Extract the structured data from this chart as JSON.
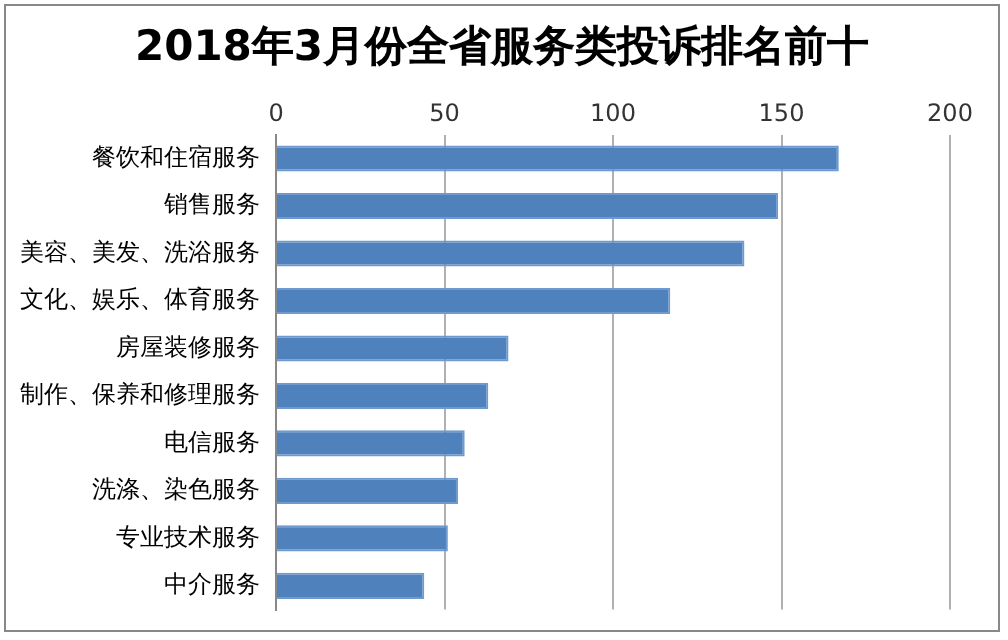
{
  "chart_data": {
    "type": "bar",
    "orientation": "horizontal",
    "title": "2018年3月份全省服务类投诉排名前十",
    "categories": [
      "餐饮和住宿服务",
      "销售服务",
      "美容、美发、洗浴服务",
      "文化、娱乐、体育服务",
      "房屋装修服务",
      "制作、保养和修理服务",
      "电信服务",
      "洗涤、染色服务",
      "专业技术服务",
      "中介服务"
    ],
    "values": [
      167,
      149,
      139,
      117,
      69,
      63,
      56,
      54,
      51,
      44
    ],
    "color": "#4f81bd",
    "xlim": [
      0,
      200
    ],
    "xticks": [
      0,
      50,
      100,
      150,
      200
    ],
    "grid": "x",
    "legend": false
  }
}
